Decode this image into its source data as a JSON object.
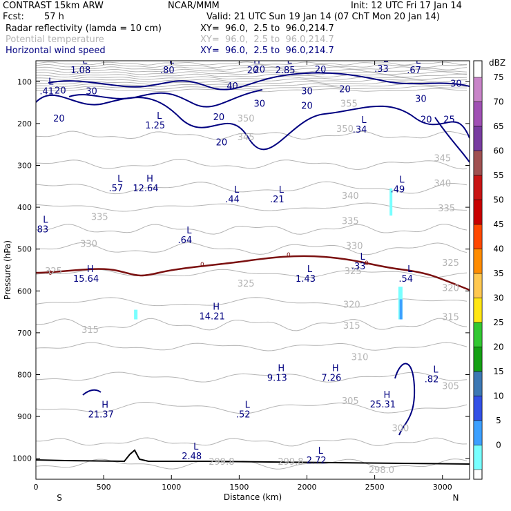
{
  "header": {
    "model": "CONTRAST 15km ARW",
    "center": "NCAR/MMM",
    "init": "Init: 12 UTC Fri 17 Jan 14",
    "fcst_label": "Fcst:",
    "fcst_value": "57 h",
    "valid": "Valid: 21 UTC Sun 19 Jan 14 (07 ChT Mon 20 Jan 14)",
    "layers": [
      {
        "name": "Radar reflectivity (lamda = 10 cm)",
        "xy": "XY=  96.0,  2.5 to  96.0,214.7",
        "color": "#000000"
      },
      {
        "name": "Potential temperature",
        "xy": "XY=  96.0,  2.5 to  96.0,214.7",
        "color": "#b4b4b4"
      },
      {
        "name": "Horizontal wind speed",
        "xy": "XY=  96.0,  2.5 to  96.0,214.7",
        "color": "#000080"
      }
    ]
  },
  "chart_data": {
    "type": "cross-section",
    "xlabel": "Distance (km)",
    "ylabel": "Pressure (hPa)",
    "xlim": [
      0,
      3200
    ],
    "ylim": [
      1050,
      50
    ],
    "x_ticks": [
      0,
      500,
      1000,
      1500,
      2000,
      2500,
      3000
    ],
    "y_ticks": [
      100,
      200,
      300,
      400,
      500,
      600,
      700,
      800,
      900,
      1000
    ],
    "left_end": "S",
    "right_end": "N",
    "colorbar": {
      "unit": "dBZ",
      "levels": [
        75,
        70,
        65,
        60,
        55,
        50,
        45,
        40,
        35,
        30,
        25,
        20,
        15,
        10,
        5,
        0
      ],
      "colors": [
        "#c884c8",
        "#a050b4",
        "#783ca0",
        "#a05050",
        "#c81414",
        "#c80000",
        "#ff4800",
        "#ff8c00",
        "#ffc850",
        "#ffe614",
        "#32c832",
        "#14a014",
        "#3c78b4",
        "#3250e6",
        "#3ca0ff",
        "#78ffff"
      ]
    },
    "wind_contours": [
      {
        "label": "20",
        "x": 180,
        "p": 128
      },
      {
        "label": "30",
        "x": 410,
        "p": 130
      },
      {
        "label": "40",
        "x": 1450,
        "p": 118
      },
      {
        "label": "30",
        "x": 1650,
        "p": 160
      },
      {
        "label": "20",
        "x": 1350,
        "p": 192
      },
      {
        "label": "20",
        "x": 1650,
        "p": 78
      },
      {
        "label": "20",
        "x": 2100,
        "p": 78
      },
      {
        "label": "30",
        "x": 2000,
        "p": 130
      },
      {
        "label": "20",
        "x": 2280,
        "p": 125
      },
      {
        "label": "30",
        "x": 2840,
        "p": 148
      },
      {
        "label": "20",
        "x": 2880,
        "p": 198
      },
      {
        "label": "25",
        "x": 3050,
        "p": 198
      },
      {
        "label": "30",
        "x": 3100,
        "p": 112
      },
      {
        "label": "20",
        "x": 170,
        "p": 195
      },
      {
        "label": "20",
        "x": 1370,
        "p": 252
      },
      {
        "label": "20",
        "x": 2000,
        "p": 165
      }
    ],
    "theta_contours": [
      {
        "label": "355",
        "x": 2310,
        "p": 160
      },
      {
        "label": "350",
        "x": 2280,
        "p": 220
      },
      {
        "label": "350",
        "x": 1550,
        "p": 195
      },
      {
        "label": "345",
        "x": 1550,
        "p": 240
      },
      {
        "label": "345",
        "x": 3000,
        "p": 290
      },
      {
        "label": "340",
        "x": 2320,
        "p": 380
      },
      {
        "label": "340",
        "x": 3000,
        "p": 350
      },
      {
        "label": "335",
        "x": 470,
        "p": 430
      },
      {
        "label": "335",
        "x": 2320,
        "p": 440
      },
      {
        "label": "335",
        "x": 3030,
        "p": 410
      },
      {
        "label": "330",
        "x": 390,
        "p": 495
      },
      {
        "label": "330",
        "x": 2350,
        "p": 500
      },
      {
        "label": "325",
        "x": 130,
        "p": 560
      },
      {
        "label": "325",
        "x": 1550,
        "p": 590
      },
      {
        "label": "325",
        "x": 2340,
        "p": 560
      },
      {
        "label": "325",
        "x": 3060,
        "p": 540
      },
      {
        "label": "320",
        "x": 2330,
        "p": 640
      },
      {
        "label": "320",
        "x": 3060,
        "p": 600
      },
      {
        "label": "315",
        "x": 400,
        "p": 700
      },
      {
        "label": "315",
        "x": 2330,
        "p": 690
      },
      {
        "label": "315",
        "x": 3060,
        "p": 670
      },
      {
        "label": "310",
        "x": 2390,
        "p": 765
      },
      {
        "label": "305",
        "x": 2320,
        "p": 870
      },
      {
        "label": "305",
        "x": 3060,
        "p": 835
      },
      {
        "label": "300",
        "x": 2690,
        "p": 935
      },
      {
        "label": "299.8",
        "x": 1370,
        "p": 1015
      },
      {
        "label": "299.8",
        "x": 1880,
        "p": 1015
      },
      {
        "label": "298.0",
        "x": 2550,
        "p": 1035
      }
    ],
    "extrema": [
      {
        "type": "L",
        "value": "1.08",
        "x": 330,
        "p": 80
      },
      {
        "type": "L",
        "value": ".80",
        "x": 970,
        "p": 80
      },
      {
        "type": "H",
        "value": "20",
        "x": 1600,
        "p": 80
      },
      {
        "type": "L",
        "value": "2.85",
        "x": 1840,
        "p": 80
      },
      {
        "type": "L",
        "value": ".33",
        "x": 2550,
        "p": 76
      },
      {
        "type": "L",
        "value": ".67",
        "x": 2790,
        "p": 80
      },
      {
        "type": "L",
        "value": ".41",
        "x": 80,
        "p": 130
      },
      {
        "type": "L",
        "value": "1.25",
        "x": 880,
        "p": 212
      },
      {
        "type": "L",
        "value": ".34",
        "x": 2390,
        "p": 222
      },
      {
        "type": "L",
        "value": ".57",
        "x": 590,
        "p": 362
      },
      {
        "type": "H",
        "value": "12.64",
        "x": 810,
        "p": 362
      },
      {
        "type": "L",
        "value": ".44",
        "x": 1450,
        "p": 388
      },
      {
        "type": "L",
        "value": ".21",
        "x": 1780,
        "p": 388
      },
      {
        "type": "L",
        "value": ".49",
        "x": 2670,
        "p": 364
      },
      {
        "type": "L",
        "value": ".83",
        "x": 40,
        "p": 460
      },
      {
        "type": "L",
        "value": ".64",
        "x": 1100,
        "p": 486
      },
      {
        "type": "L",
        "value": ".33",
        "x": 2380,
        "p": 548
      },
      {
        "type": "H",
        "value": "15.64",
        "x": 370,
        "p": 578
      },
      {
        "type": "L",
        "value": "1.43",
        "x": 1990,
        "p": 578
      },
      {
        "type": "L",
        "value": ".54",
        "x": 2730,
        "p": 578
      },
      {
        "type": "H",
        "value": "14.21",
        "x": 1300,
        "p": 668
      },
      {
        "type": "H",
        "value": "9.13",
        "x": 1780,
        "p": 815
      },
      {
        "type": "H",
        "value": "7.26",
        "x": 2180,
        "p": 815
      },
      {
        "type": "L",
        "value": ".82",
        "x": 2920,
        "p": 818
      },
      {
        "type": "H",
        "value": "25.31",
        "x": 2560,
        "p": 878
      },
      {
        "type": "H",
        "value": "21.37",
        "x": 480,
        "p": 902
      },
      {
        "type": "L",
        "value": ".52",
        "x": 1530,
        "p": 902
      },
      {
        "type": "L",
        "value": "2.48",
        "x": 1150,
        "p": 1002
      },
      {
        "type": "L",
        "value": "2.72",
        "x": 2070,
        "p": 1012
      }
    ],
    "zero_label": "0"
  }
}
